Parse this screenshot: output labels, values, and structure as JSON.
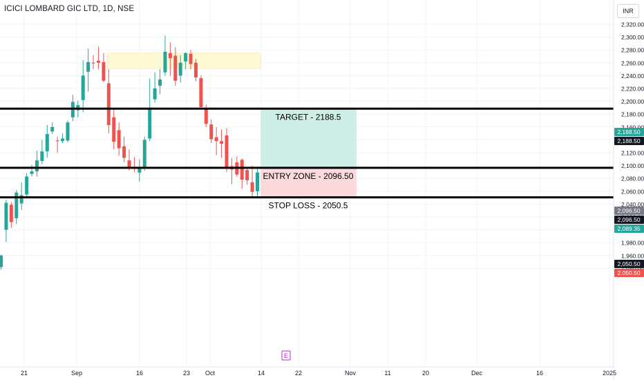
{
  "header": {
    "title": "ICICI LOMBARD GIC LTD, 1D, NSE",
    "currency": "INR"
  },
  "colors": {
    "up": "#26a69a",
    "down": "#ef5350",
    "target_zone": "#cfeee6",
    "stop_zone": "#fbd9dc",
    "highlight": "#fff9d6",
    "tag_green": "#26a69a",
    "tag_red": "#ef5350",
    "tag_gray": "#787b86",
    "tag_black": "#131722",
    "event": "#c026d3"
  },
  "annotations": {
    "target": "TARGET - 2188.5",
    "entry": "ENTRY ZONE - 2096.50",
    "stop": "STOP LOSS - 2050.5",
    "event_marker": "E"
  },
  "chart_data": {
    "type": "candlestick",
    "title": "ICICI LOMBARD GIC LTD, 1D, NSE",
    "ylim": [
      1937,
      2327
    ],
    "y_ticks": [
      "2,320.00",
      "2,300.00",
      "2,280.00",
      "2,260.00",
      "2,240.00",
      "2,220.00",
      "2,200.00",
      "2,180.00",
      "2,160.00",
      "2,140.00",
      "2,120.00",
      "2,100.00",
      "2,080.00",
      "2,060.00",
      "2,040.00",
      "2,020.00",
      "2,000.00",
      "1,980.00",
      "1,960.00",
      "1,940.00"
    ],
    "x_ticks": [
      "21",
      "Sep",
      "16",
      "Sep 23",
      "Oct",
      "14",
      "22",
      "Nov",
      "11",
      "20",
      "Dec",
      "16",
      "2025"
    ],
    "x_ticks_display": [
      "21",
      "Sep",
      "16",
      "23",
      "Oct",
      "14",
      "22",
      "Nov",
      "11",
      "20",
      "Dec",
      "16",
      "2025"
    ],
    "horizontal_lines": [
      {
        "label": "TARGET - 2188.5",
        "value": 2188.5
      },
      {
        "label": "ENTRY ZONE - 2096.50",
        "value": 2096.5
      },
      {
        "label": "STOP LOSS - 2050.5",
        "value": 2050.5
      }
    ],
    "price_tags": [
      {
        "text": "2,188.50",
        "value": 2188.5,
        "style": "green"
      },
      {
        "text": "2,188.50",
        "value": 2188.5,
        "style": "black"
      },
      {
        "text": "2,096.50",
        "value": 2096.5,
        "style": "gray"
      },
      {
        "text": "2,096.50",
        "value": 2096.5,
        "style": "black"
      },
      {
        "text": "2,089.35",
        "value": 2089.35,
        "style": "green"
      },
      {
        "text": "2,050.50",
        "value": 2050.5,
        "style": "black"
      },
      {
        "text": "2,050.50",
        "value": 2050.5,
        "style": "red"
      }
    ],
    "candles": [
      {
        "d": "Aug 16",
        "o": 1942,
        "h": 1961,
        "l": 1938,
        "c": 1960
      },
      {
        "d": "Aug 19",
        "o": 2000,
        "h": 2047,
        "l": 1981,
        "c": 2042
      },
      {
        "d": "Aug 20",
        "o": 2039,
        "h": 2043,
        "l": 2003,
        "c": 2012
      },
      {
        "d": "Aug 21",
        "o": 2018,
        "h": 2062,
        "l": 2009,
        "c": 2058
      },
      {
        "d": "Aug 22",
        "o": 2041,
        "h": 2074,
        "l": 2031,
        "c": 2054
      },
      {
        "d": "Aug 23",
        "o": 2055,
        "h": 2088,
        "l": 2050,
        "c": 2083
      },
      {
        "d": "Aug 26",
        "o": 2087,
        "h": 2101,
        "l": 2083,
        "c": 2091
      },
      {
        "d": "Aug 27",
        "o": 2091,
        "h": 2123,
        "l": 2083,
        "c": 2108
      },
      {
        "d": "Aug 28",
        "o": 2107,
        "h": 2140,
        "l": 2102,
        "c": 2122
      },
      {
        "d": "Aug 29",
        "o": 2122,
        "h": 2163,
        "l": 2112,
        "c": 2149
      },
      {
        "d": "Aug 30",
        "o": 2153,
        "h": 2167,
        "l": 2149,
        "c": 2160
      },
      {
        "d": "Sep 2",
        "o": 2139,
        "h": 2145,
        "l": 2120,
        "c": 2138
      },
      {
        "d": "Sep 3",
        "o": 2138,
        "h": 2150,
        "l": 2135,
        "c": 2142
      },
      {
        "d": "Sep 4",
        "o": 2139,
        "h": 2170,
        "l": 2136,
        "c": 2167
      },
      {
        "d": "Sep 5",
        "o": 2175,
        "h": 2210,
        "l": 2169,
        "c": 2199
      },
      {
        "d": "Sep 6",
        "o": 2186,
        "h": 2201,
        "l": 2175,
        "c": 2194
      },
      {
        "d": "Sep 9",
        "o": 2202,
        "h": 2264,
        "l": 2183,
        "c": 2240
      },
      {
        "d": "Sep 10",
        "o": 2246,
        "h": 2282,
        "l": 2215,
        "c": 2261
      },
      {
        "d": "Sep 11",
        "o": 2260,
        "h": 2272,
        "l": 2250,
        "c": 2259
      },
      {
        "d": "Sep 12",
        "o": 2263,
        "h": 2285,
        "l": 2250,
        "c": 2260
      },
      {
        "d": "Sep 13",
        "o": 2261,
        "h": 2275,
        "l": 2230,
        "c": 2232
      },
      {
        "d": "Sep 16",
        "o": 2228,
        "h": 2250,
        "l": 2150,
        "c": 2163
      },
      {
        "d": "Sep 17",
        "o": 2175,
        "h": 2190,
        "l": 2125,
        "c": 2137
      },
      {
        "d": "Sep 18",
        "o": 2155,
        "h": 2167,
        "l": 2115,
        "c": 2127
      },
      {
        "d": "Sep 19",
        "o": 2130,
        "h": 2145,
        "l": 2105,
        "c": 2112
      },
      {
        "d": "Sep 20",
        "o": 2108,
        "h": 2125,
        "l": 2092,
        "c": 2098
      },
      {
        "d": "Sep 23",
        "o": 2098,
        "h": 2113,
        "l": 2090,
        "c": 2095
      },
      {
        "d": "Sep 24",
        "o": 2089,
        "h": 2110,
        "l": 2075,
        "c": 2097
      },
      {
        "d": "Sep 25",
        "o": 2097,
        "h": 2145,
        "l": 2092,
        "c": 2140
      },
      {
        "d": "Sep 26",
        "o": 2142,
        "h": 2235,
        "l": 2138,
        "c": 2190
      },
      {
        "d": "Sep 27",
        "o": 2203,
        "h": 2245,
        "l": 2198,
        "c": 2220
      },
      {
        "d": "Sep 30",
        "o": 2224,
        "h": 2250,
        "l": 2211,
        "c": 2234
      },
      {
        "d": "Oct 1",
        "o": 2245,
        "h": 2302,
        "l": 2240,
        "c": 2277
      },
      {
        "d": "Oct 3",
        "o": 2275,
        "h": 2292,
        "l": 2240,
        "c": 2267
      },
      {
        "d": "Oct 4",
        "o": 2271,
        "h": 2284,
        "l": 2224,
        "c": 2232
      },
      {
        "d": "Oct 7",
        "o": 2240,
        "h": 2272,
        "l": 2229,
        "c": 2260
      },
      {
        "d": "Oct 8",
        "o": 2262,
        "h": 2276,
        "l": 2250,
        "c": 2275
      },
      {
        "d": "Oct 9",
        "o": 2274,
        "h": 2280,
        "l": 2250,
        "c": 2258
      },
      {
        "d": "Oct 10",
        "o": 2260,
        "h": 2266,
        "l": 2231,
        "c": 2237
      },
      {
        "d": "Oct 11",
        "o": 2236,
        "h": 2240,
        "l": 2188,
        "c": 2191
      },
      {
        "d": "Oct 14",
        "o": 2188,
        "h": 2195,
        "l": 2160,
        "c": 2165
      },
      {
        "d": "Oct 15",
        "o": 2164,
        "h": 2172,
        "l": 2135,
        "c": 2141
      },
      {
        "d": "Oct 16",
        "o": 2144,
        "h": 2160,
        "l": 2116,
        "c": 2138
      },
      {
        "d": "Oct 17",
        "o": 2138,
        "h": 2156,
        "l": 2112,
        "c": 2134
      },
      {
        "d": "Oct 18",
        "o": 2147,
        "h": 2158,
        "l": 2090,
        "c": 2097
      },
      {
        "d": "Oct 21",
        "o": 2099,
        "h": 2112,
        "l": 2071,
        "c": 2094
      },
      {
        "d": "Oct 22",
        "o": 2105,
        "h": 2114,
        "l": 2083,
        "c": 2086
      },
      {
        "d": "Oct 23",
        "o": 2109,
        "h": 2111,
        "l": 2064,
        "c": 2078
      },
      {
        "d": "Oct 24",
        "o": 2093,
        "h": 2097,
        "l": 2070,
        "c": 2077
      },
      {
        "d": "Oct 25",
        "o": 2074,
        "h": 2100,
        "l": 2050,
        "c": 2059
      },
      {
        "d": "Oct 28",
        "o": 2060,
        "h": 2098,
        "l": 2050,
        "c": 2089.35
      }
    ]
  }
}
